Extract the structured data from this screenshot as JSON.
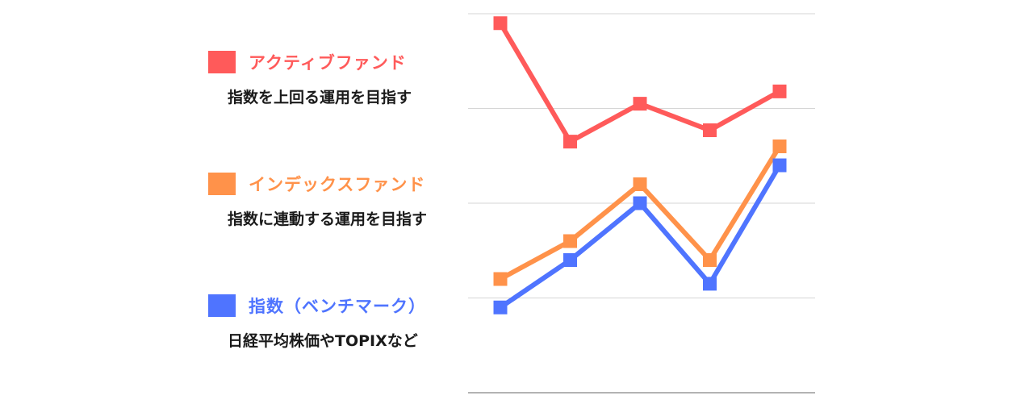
{
  "legend": [
    {
      "title": "アクティブファンド",
      "description": "指数を上回る運用を目指す",
      "color": "#ff5a5a"
    },
    {
      "title": "インデックスファンド",
      "description": "指数に連動する運用を目指す",
      "color": "#ff924a"
    },
    {
      "title": "指数（ベンチマーク）",
      "description": "日経平均株価やTOPIXなど",
      "color": "#4f74ff"
    }
  ],
  "chart_data": {
    "type": "line",
    "x": [
      1,
      2,
      3,
      4,
      5
    ],
    "ylim": [
      0,
      4
    ],
    "grid": true,
    "series": [
      {
        "name": "アクティブファンド",
        "color": "#ff5a5a",
        "values": [
          3.9,
          2.65,
          3.05,
          2.77,
          3.18
        ]
      },
      {
        "name": "インデックスファンド",
        "color": "#ff924a",
        "values": [
          1.2,
          1.6,
          2.2,
          1.4,
          2.6
        ]
      },
      {
        "name": "指数（ベンチマーク）",
        "color": "#4f74ff",
        "values": [
          0.9,
          1.4,
          2.0,
          1.15,
          2.4
        ]
      }
    ]
  }
}
